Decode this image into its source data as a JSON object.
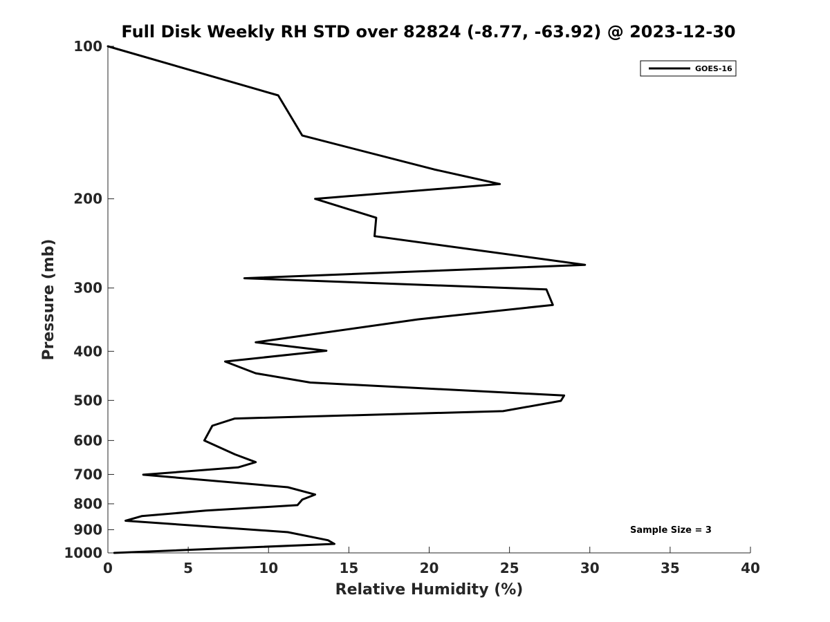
{
  "chart_data": {
    "type": "line",
    "title": "Full Disk Weekly RH STD over 82824 (-8.77, -63.92) @ 2023-12-30",
    "xlabel": "Relative Humidity (%)",
    "ylabel": "Pressure (mb)",
    "xlim": [
      0,
      40
    ],
    "ylim": [
      100,
      1000
    ],
    "y_scale": "log",
    "y_direction": "reversed",
    "grid": false,
    "legend_position": "top-right",
    "x_ticks": [
      0,
      5,
      10,
      15,
      20,
      25,
      30,
      35,
      40
    ],
    "y_ticks": [
      100,
      200,
      300,
      400,
      500,
      600,
      700,
      800,
      900,
      1000
    ],
    "series": [
      {
        "name": "GOES-16",
        "color": "#000000",
        "points": [
          [
            0.0,
            100
          ],
          [
            10.6,
            125
          ],
          [
            12.1,
            150
          ],
          [
            20.3,
            175
          ],
          [
            24.4,
            187
          ],
          [
            12.9,
            200
          ],
          [
            16.7,
            218
          ],
          [
            16.6,
            237
          ],
          [
            29.7,
            270
          ],
          [
            8.5,
            287
          ],
          [
            27.3,
            302
          ],
          [
            27.7,
            324
          ],
          [
            19.3,
            346
          ],
          [
            9.2,
            384
          ],
          [
            13.6,
            399
          ],
          [
            7.3,
            419
          ],
          [
            9.2,
            442
          ],
          [
            12.6,
            461
          ],
          [
            28.4,
            489
          ],
          [
            28.2,
            501
          ],
          [
            24.6,
            525
          ],
          [
            7.9,
            543
          ],
          [
            6.5,
            561
          ],
          [
            6.0,
            600
          ],
          [
            7.9,
            639
          ],
          [
            9.2,
            662
          ],
          [
            8.1,
            678
          ],
          [
            2.2,
            701
          ],
          [
            11.2,
            742
          ],
          [
            12.9,
            767
          ],
          [
            12.1,
            785
          ],
          [
            11.8,
            805
          ],
          [
            6.1,
            825
          ],
          [
            2.1,
            846
          ],
          [
            1.1,
            864
          ],
          [
            11.2,
            910
          ],
          [
            13.7,
            944
          ],
          [
            14.1,
            960
          ],
          [
            0.4,
            1000
          ]
        ]
      }
    ],
    "annotations": [
      "Sample Size = 3"
    ]
  }
}
